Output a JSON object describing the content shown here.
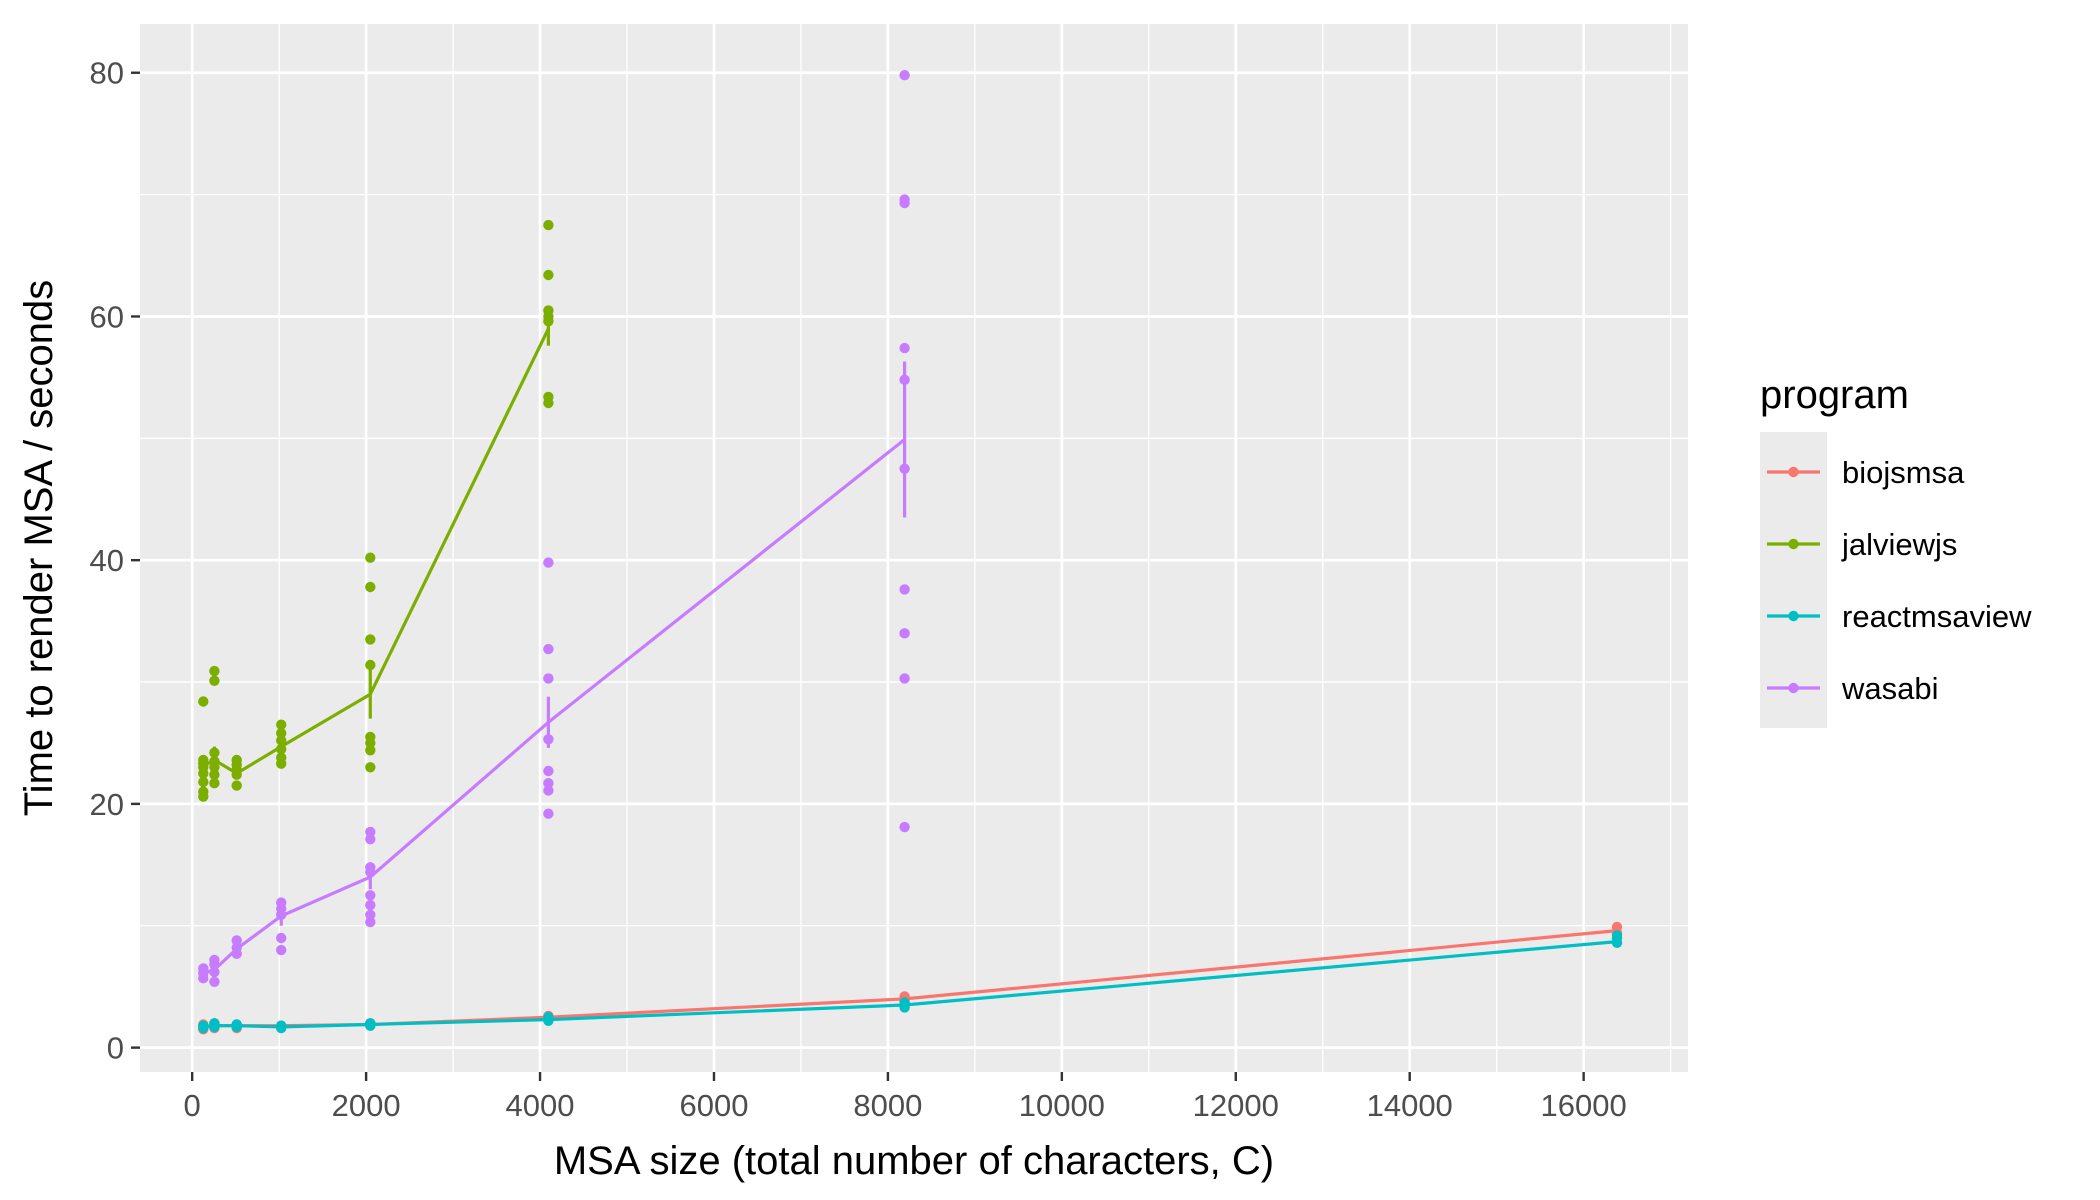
{
  "chart_data": {
    "type": "line",
    "xlabel": "MSA size (total number of characters, C)",
    "ylabel": "Time to render MSA / seconds",
    "xlim": [
      -600,
      17200
    ],
    "ylim": [
      -2,
      84
    ],
    "x_ticks": [
      0,
      2000,
      4000,
      6000,
      8000,
      10000,
      12000,
      14000,
      16000
    ],
    "x_tick_labels": [
      "0",
      "2000",
      "4000",
      "6000",
      "8000",
      "10000",
      "12000",
      "14000",
      "16000"
    ],
    "y_ticks": [
      0,
      20,
      40,
      60,
      80
    ],
    "y_tick_labels": [
      "0",
      "20",
      "40",
      "60",
      "80"
    ],
    "grid": true,
    "background": "#ebebeb",
    "legend": {
      "title": "program",
      "position": "right"
    },
    "series": [
      {
        "name": "biojsmsa",
        "color": "#f8766d",
        "line": [
          [
            128,
            1.7
          ],
          [
            256,
            1.8
          ],
          [
            512,
            1.8
          ],
          [
            1024,
            1.8
          ],
          [
            2048,
            1.9
          ],
          [
            4096,
            2.5
          ],
          [
            8192,
            4.0
          ],
          [
            16384,
            9.6
          ]
        ],
        "points": [
          [
            128,
            1.5
          ],
          [
            128,
            1.7
          ],
          [
            128,
            1.9
          ],
          [
            256,
            1.6
          ],
          [
            256,
            1.8
          ],
          [
            256,
            2.0
          ],
          [
            512,
            1.6
          ],
          [
            512,
            1.8
          ],
          [
            512,
            1.9
          ],
          [
            1024,
            1.7
          ],
          [
            1024,
            1.8
          ],
          [
            2048,
            1.8
          ],
          [
            2048,
            2.0
          ],
          [
            4096,
            2.3
          ],
          [
            4096,
            2.6
          ],
          [
            8192,
            3.8
          ],
          [
            8192,
            4.2
          ],
          [
            16384,
            9.4
          ],
          [
            16384,
            9.9
          ]
        ],
        "errorbars": []
      },
      {
        "name": "jalviewjs",
        "color": "#7cae00",
        "line": [
          [
            128,
            23.1
          ],
          [
            256,
            23.6
          ],
          [
            512,
            22.5
          ],
          [
            1024,
            24.7
          ],
          [
            2048,
            29.0
          ],
          [
            4096,
            59.0
          ]
        ],
        "points": [
          [
            128,
            20.6
          ],
          [
            128,
            21.0
          ],
          [
            128,
            21.8
          ],
          [
            128,
            22.5
          ],
          [
            128,
            23.0
          ],
          [
            128,
            23.3
          ],
          [
            128,
            23.6
          ],
          [
            128,
            28.4
          ],
          [
            256,
            21.7
          ],
          [
            256,
            22.4
          ],
          [
            256,
            23.0
          ],
          [
            256,
            23.5
          ],
          [
            256,
            24.2
          ],
          [
            256,
            30.1
          ],
          [
            256,
            30.9
          ],
          [
            512,
            21.5
          ],
          [
            512,
            22.4
          ],
          [
            512,
            22.8
          ],
          [
            512,
            23.2
          ],
          [
            512,
            23.6
          ],
          [
            1024,
            23.3
          ],
          [
            1024,
            23.8
          ],
          [
            1024,
            24.5
          ],
          [
            1024,
            25.2
          ],
          [
            1024,
            25.8
          ],
          [
            1024,
            26.5
          ],
          [
            2048,
            23.0
          ],
          [
            2048,
            24.4
          ],
          [
            2048,
            25.0
          ],
          [
            2048,
            25.5
          ],
          [
            2048,
            31.4
          ],
          [
            2048,
            33.5
          ],
          [
            2048,
            37.8
          ],
          [
            2048,
            40.2
          ],
          [
            4096,
            52.9
          ],
          [
            4096,
            53.4
          ],
          [
            4096,
            59.6
          ],
          [
            4096,
            60.0
          ],
          [
            4096,
            60.5
          ],
          [
            4096,
            63.4
          ],
          [
            4096,
            67.5
          ]
        ],
        "errorbars": [
          [
            256,
            22.6,
            24.7
          ],
          [
            1024,
            23.8,
            25.6
          ],
          [
            2048,
            27.0,
            31.2
          ],
          [
            4096,
            57.6,
            60.4
          ]
        ]
      },
      {
        "name": "reactmsaview",
        "color": "#00bfc4",
        "line": [
          [
            128,
            1.7
          ],
          [
            256,
            1.8
          ],
          [
            512,
            1.8
          ],
          [
            1024,
            1.7
          ],
          [
            2048,
            1.9
          ],
          [
            4096,
            2.3
          ],
          [
            8192,
            3.5
          ],
          [
            16384,
            8.7
          ]
        ],
        "points": [
          [
            128,
            1.6
          ],
          [
            128,
            1.8
          ],
          [
            256,
            1.7
          ],
          [
            256,
            1.9
          ],
          [
            256,
            2.0
          ],
          [
            512,
            1.7
          ],
          [
            512,
            1.9
          ],
          [
            1024,
            1.6
          ],
          [
            1024,
            1.8
          ],
          [
            2048,
            1.8
          ],
          [
            2048,
            2.0
          ],
          [
            4096,
            2.2
          ],
          [
            4096,
            2.5
          ],
          [
            8192,
            3.3
          ],
          [
            8192,
            3.7
          ],
          [
            16384,
            8.6
          ],
          [
            16384,
            9.0
          ],
          [
            16384,
            9.2
          ]
        ],
        "errorbars": []
      },
      {
        "name": "wasabi",
        "color": "#c77cff",
        "line": [
          [
            128,
            6.1
          ],
          [
            256,
            6.4
          ],
          [
            512,
            8.1
          ],
          [
            1024,
            10.8
          ],
          [
            2048,
            14.0
          ],
          [
            4096,
            26.7
          ],
          [
            8192,
            49.9
          ]
        ],
        "points": [
          [
            128,
            5.7
          ],
          [
            128,
            6.1
          ],
          [
            128,
            6.5
          ],
          [
            256,
            5.4
          ],
          [
            256,
            6.2
          ],
          [
            256,
            6.8
          ],
          [
            256,
            7.2
          ],
          [
            512,
            7.7
          ],
          [
            512,
            8.2
          ],
          [
            512,
            8.8
          ],
          [
            1024,
            8.0
          ],
          [
            1024,
            9.0
          ],
          [
            1024,
            10.9
          ],
          [
            1024,
            11.4
          ],
          [
            1024,
            11.9
          ],
          [
            2048,
            10.3
          ],
          [
            2048,
            10.9
          ],
          [
            2048,
            11.7
          ],
          [
            2048,
            12.5
          ],
          [
            2048,
            14.4
          ],
          [
            2048,
            14.8
          ],
          [
            2048,
            17.1
          ],
          [
            2048,
            17.7
          ],
          [
            4096,
            19.2
          ],
          [
            4096,
            21.1
          ],
          [
            4096,
            21.7
          ],
          [
            4096,
            22.7
          ],
          [
            4096,
            25.3
          ],
          [
            4096,
            30.3
          ],
          [
            4096,
            32.7
          ],
          [
            4096,
            39.8
          ],
          [
            8192,
            18.1
          ],
          [
            8192,
            30.3
          ],
          [
            8192,
            34.0
          ],
          [
            8192,
            37.6
          ],
          [
            8192,
            47.5
          ],
          [
            8192,
            54.8
          ],
          [
            8192,
            57.4
          ],
          [
            8192,
            69.3
          ],
          [
            8192,
            69.6
          ],
          [
            8192,
            79.8
          ]
        ],
        "errorbars": [
          [
            256,
            5.6,
            7.1
          ],
          [
            512,
            7.6,
            8.6
          ],
          [
            1024,
            10.0,
            11.6
          ],
          [
            2048,
            13.0,
            15.2
          ],
          [
            4096,
            24.6,
            28.8
          ],
          [
            8192,
            43.5,
            56.3
          ]
        ]
      }
    ]
  }
}
